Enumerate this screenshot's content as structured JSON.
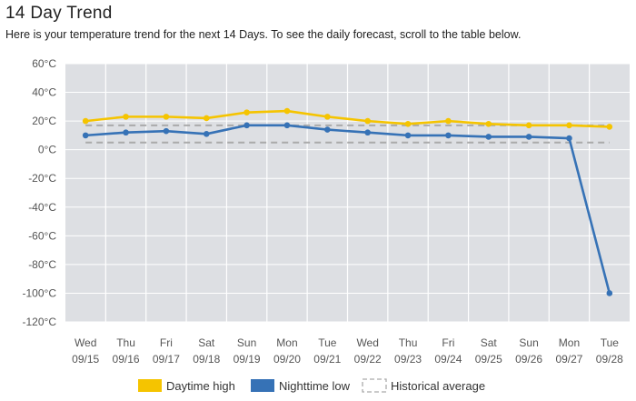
{
  "header": {
    "title": "14 Day Trend",
    "subtitle": "Here is your temperature trend for the next 14 Days. To see the daily forecast, scroll to the table below."
  },
  "chart_data": {
    "type": "line",
    "title": "14 Day Trend",
    "xlabel": "",
    "ylabel": "",
    "ylim": [
      -120,
      60
    ],
    "y_ticks": [
      60,
      40,
      20,
      0,
      -20,
      -40,
      -60,
      -80,
      -100,
      -120
    ],
    "y_tick_labels": [
      "60°C",
      "40°C",
      "20°C",
      "0°C",
      "-20°C",
      "-40°C",
      "-60°C",
      "-80°C",
      "-100°C",
      "-120°C"
    ],
    "grid": true,
    "legend_position": "bottom",
    "days": [
      "Wed",
      "Thu",
      "Fri",
      "Sat",
      "Sun",
      "Mon",
      "Tue",
      "Wed",
      "Thu",
      "Fri",
      "Sat",
      "Sun",
      "Mon",
      "Tue"
    ],
    "dates": [
      "09/15",
      "09/16",
      "09/17",
      "09/18",
      "09/19",
      "09/20",
      "09/21",
      "09/22",
      "09/23",
      "09/24",
      "09/25",
      "09/26",
      "09/27",
      "09/28"
    ],
    "series": [
      {
        "name": "Daytime high",
        "color": "#f5c400",
        "values": [
          20,
          23,
          23,
          22,
          26,
          27,
          23,
          20,
          18,
          20,
          18,
          17,
          17,
          16
        ]
      },
      {
        "name": "Nighttime low",
        "color": "#3672b6",
        "values": [
          10,
          12,
          13,
          11,
          17,
          17,
          14,
          12,
          10,
          10,
          9,
          9,
          8,
          -100
        ]
      }
    ],
    "historical": {
      "name": "Historical average",
      "color": "#aaaaaa",
      "high": 17,
      "low": 5
    }
  }
}
